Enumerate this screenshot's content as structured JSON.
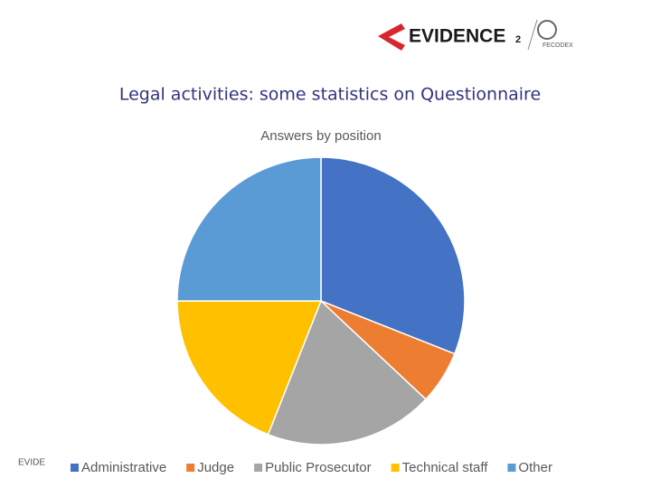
{
  "header": {
    "logo": "EVIDENCE",
    "logo_number": "2",
    "partner": "FECODEX"
  },
  "slide_title": "Legal activities: some statistics on Questionnaire",
  "footer": "EVIDE",
  "chart_data": {
    "type": "pie",
    "title": "Answers by position",
    "categories": [
      "Administrative",
      "Judge",
      "Public Prosecutor",
      "Technical staff",
      "Other"
    ],
    "values": [
      31,
      6,
      19,
      19,
      25
    ],
    "colors": [
      "#4472c4",
      "#ed7d31",
      "#a5a5a5",
      "#ffc000",
      "#5b9bd5"
    ],
    "legend": "bottom"
  }
}
